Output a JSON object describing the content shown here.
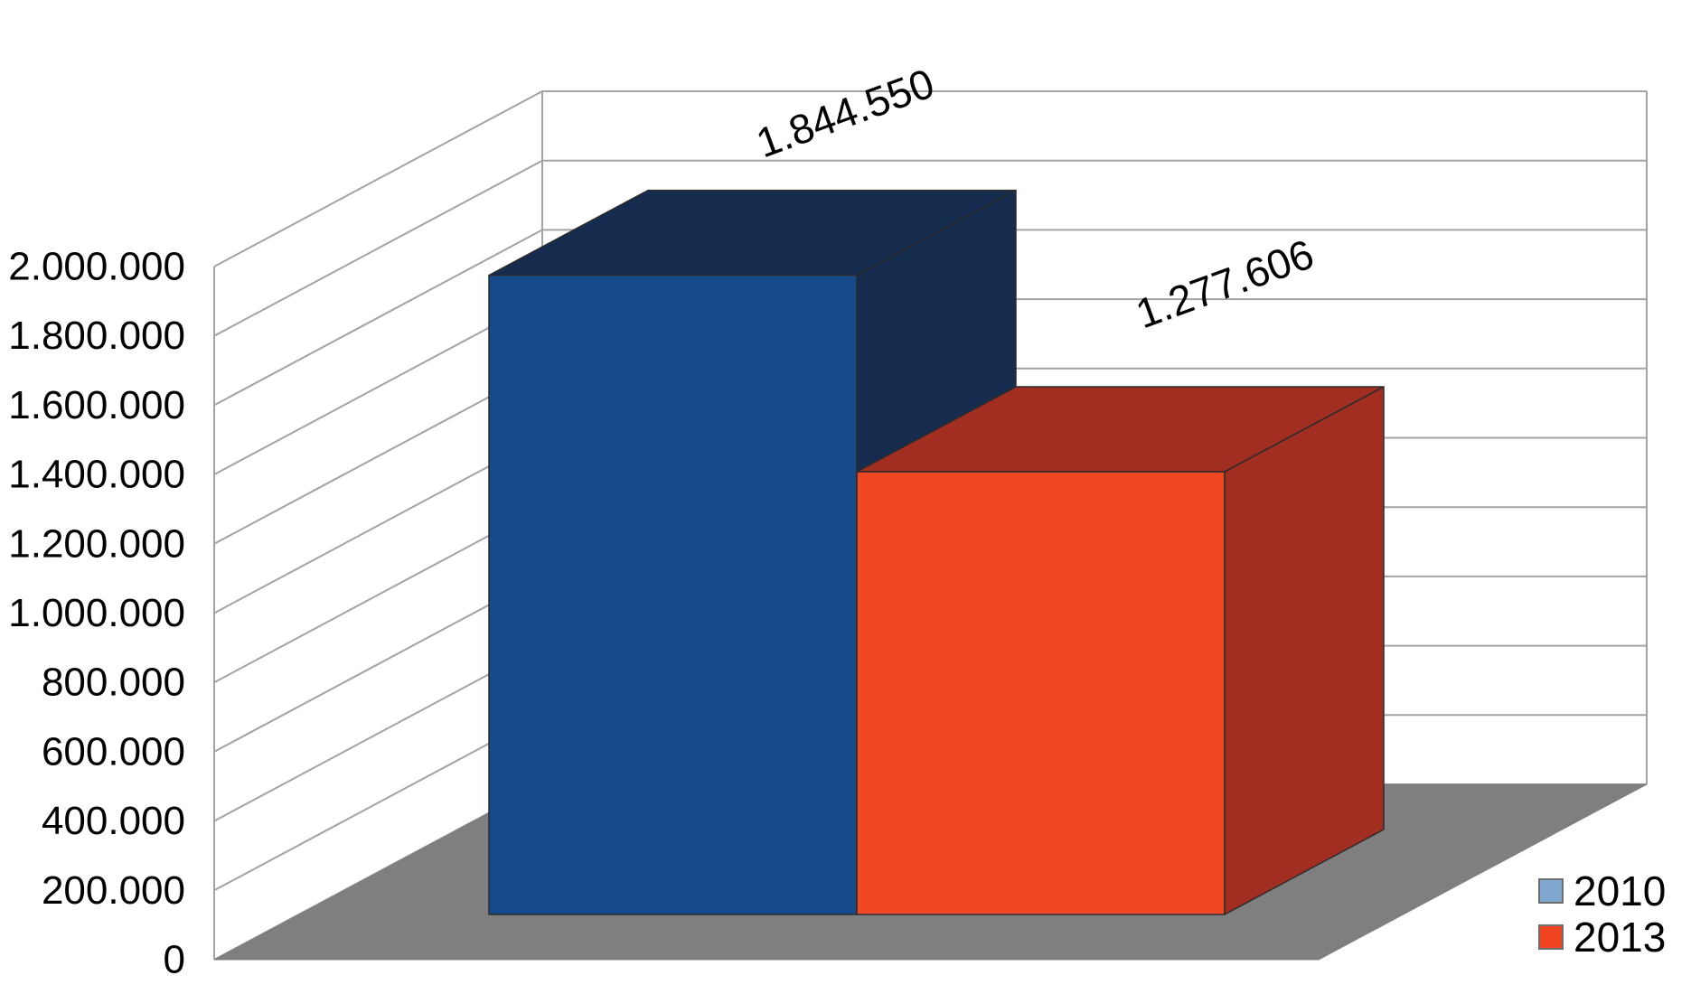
{
  "chart_data": {
    "type": "bar",
    "projection": "3d-column",
    "title": "",
    "categories": [
      ""
    ],
    "series": [
      {
        "name": "2010",
        "values": [
          1844550
        ],
        "data_labels": [
          "1.844.550"
        ],
        "color_front": "#164B8B",
        "color_shade": "#152C4F"
      },
      {
        "name": "2013",
        "values": [
          1277606
        ],
        "data_labels": [
          "1.277.606"
        ],
        "color_front": "#EF4823",
        "color_shade": "#A22E22"
      }
    ],
    "ylim": [
      0,
      2000000
    ],
    "ytick_step": 200000,
    "yticks": [
      "2.000.000",
      "1.800.000",
      "1.600.000",
      "1.400.000",
      "1.200.000",
      "1.000.000",
      "800.000",
      "600.000",
      "400.000",
      "200.000",
      "0"
    ],
    "number_format": "dot-thousands",
    "gridlines": true,
    "legend_position": "bottom-right"
  },
  "legend": {
    "items": [
      {
        "label": "2010",
        "swatch": "#7FA7CF"
      },
      {
        "label": "2013",
        "swatch": "#F04520"
      }
    ],
    "swatch_border": "#6E6E6E"
  },
  "colors": {
    "background": "#FFFFFF",
    "floor": "#7F7F7F",
    "gridline": "#A3A3A3",
    "bar_edge": "#2B2B2B",
    "text": "#000000"
  }
}
